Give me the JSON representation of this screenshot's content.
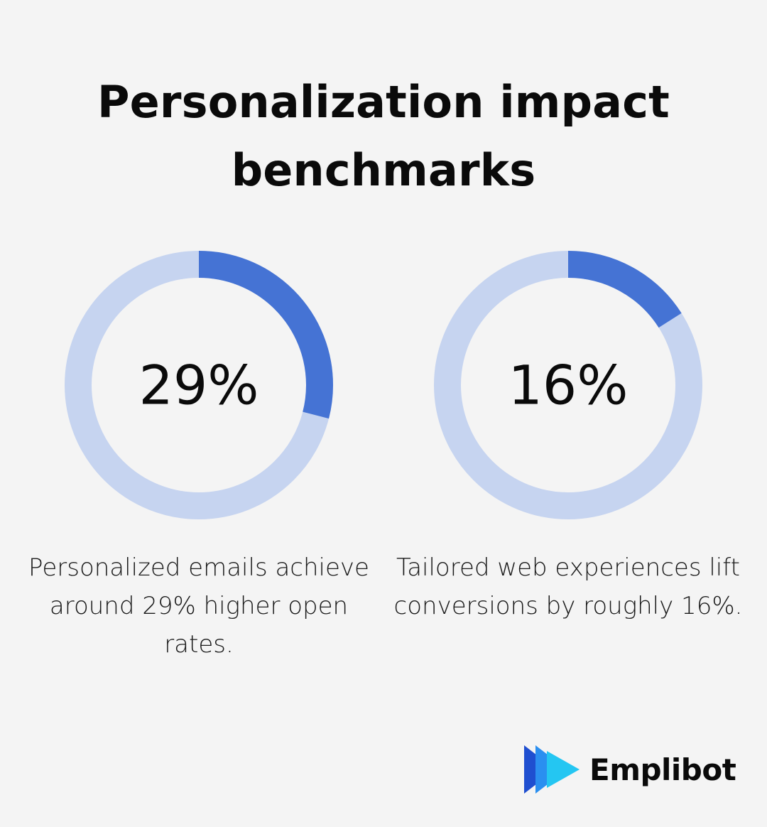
{
  "title_lines": [
    "Personalization impact",
    "benchmarks"
  ],
  "colors": {
    "filled": "#4573d4",
    "track": "#c6d4f0",
    "background": "#f4f4f4"
  },
  "chart_data": [
    {
      "type": "pie",
      "variant": "donut",
      "value": 29,
      "max": 100,
      "center_label": "29%",
      "description": "Personalized emails achieve around 29% higher open rates."
    },
    {
      "type": "pie",
      "variant": "donut",
      "value": 16,
      "max": 100,
      "center_label": "16%",
      "description": "Tailored web experiences lift conversions by roughly 16%."
    }
  ],
  "logo": {
    "name": "Emplibot",
    "icon": "play-triangle-logo-icon"
  }
}
